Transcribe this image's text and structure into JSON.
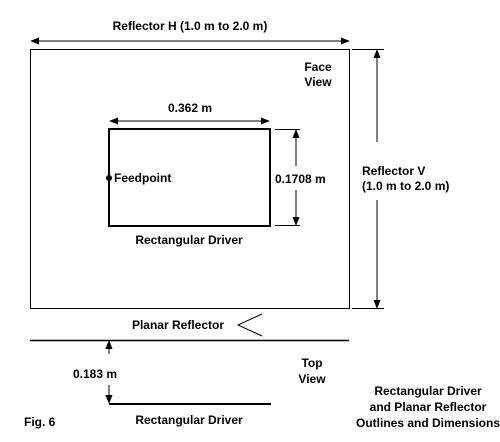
{
  "labels": {
    "reflector_h": "Reflector H (1.0 m to 2.0 m)",
    "face_view_line1": "Face",
    "face_view_line2": "View",
    "driver_width": "0.362 m",
    "feedpoint": "Feedpoint",
    "driver_height": "0.1708 m",
    "reflector_v_line1": "Reflector V",
    "reflector_v_line2": "(1.0 m to 2.0 m)",
    "rectangular_driver": "Rectangular Driver",
    "planar_reflector": "Planar Reflector",
    "spacing": "0.183 m",
    "top_view_line1": "Top",
    "top_view_line2": "View",
    "top_driver": "Rectangular Driver",
    "fig_number": "Fig. 6",
    "caption_line1": "Rectangular Driver",
    "caption_line2": "and Planar Reflector",
    "caption_line3": "Outlines and Dimensions"
  },
  "colors": {
    "ink": "#000000",
    "background": "#ffffff"
  }
}
